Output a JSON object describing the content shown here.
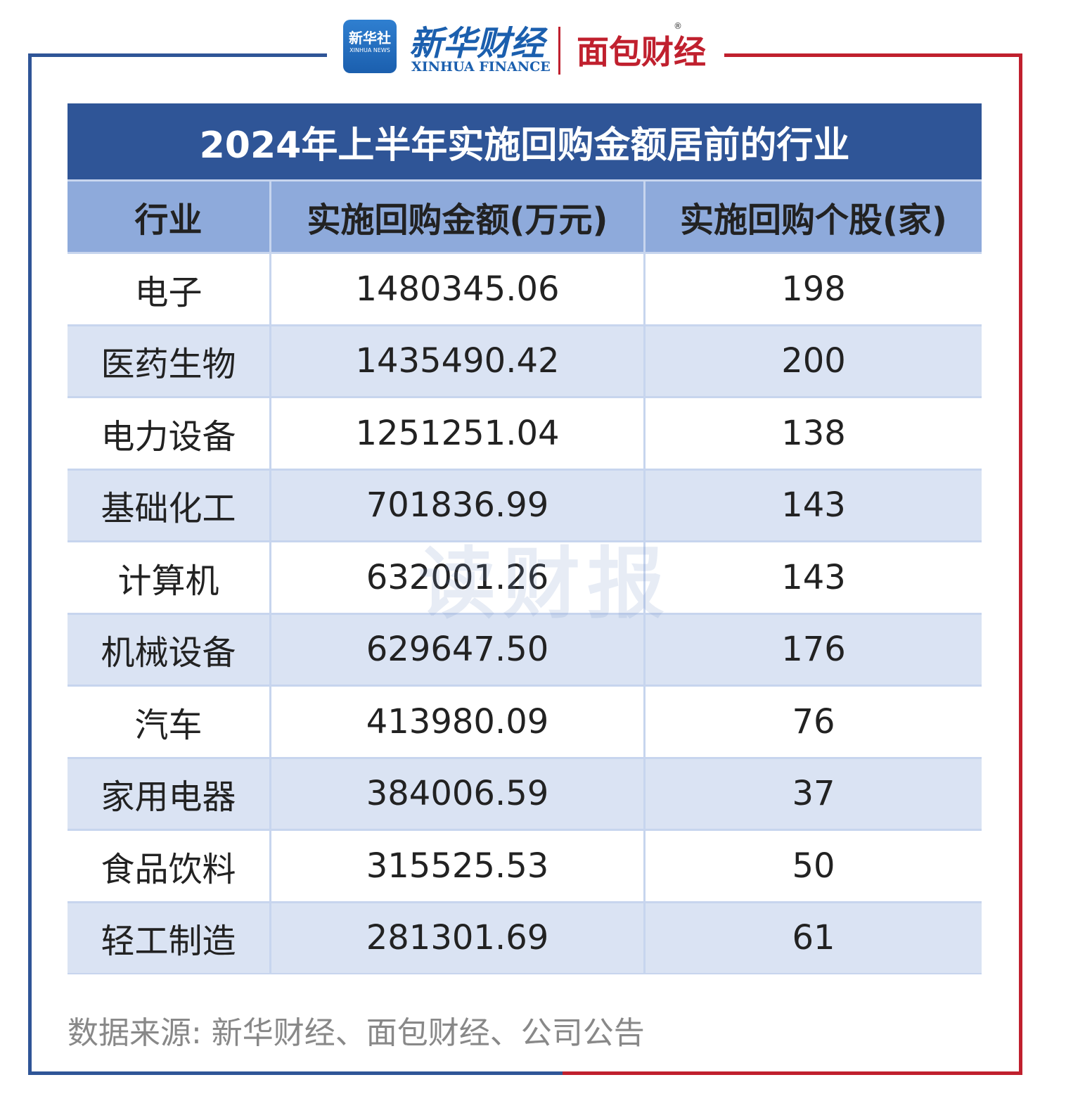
{
  "header": {
    "xinhua_badge": "新华社",
    "xinhua_badge_en": "XINHUA NEWS",
    "xinhua_finance": "新华财经",
    "xinhua_finance_en": "XINHUA FINANCE",
    "mianbao": "面包财经",
    "registered": "®"
  },
  "table": {
    "title": "2024年上半年实施回购金额居前的行业",
    "columns": [
      "行业",
      "实施回购金额(万元)",
      "实施回购个股(家)"
    ],
    "rows": [
      [
        "电子",
        "1480345.06",
        "198"
      ],
      [
        "医药生物",
        "1435490.42",
        "200"
      ],
      [
        "电力设备",
        "1251251.04",
        "138"
      ],
      [
        "基础化工",
        "701836.99",
        "143"
      ],
      [
        "计算机",
        "632001.26",
        "143"
      ],
      [
        "机械设备",
        "629647.50",
        "176"
      ],
      [
        "汽车",
        "413980.09",
        "76"
      ],
      [
        "家用电器",
        "384006.59",
        "37"
      ],
      [
        "食品饮料",
        "315525.53",
        "50"
      ],
      [
        "轻工制造",
        "281301.69",
        "61"
      ]
    ]
  },
  "watermark": "读财报",
  "source": "数据来源: 新华财经、面包财经、公司公告"
}
